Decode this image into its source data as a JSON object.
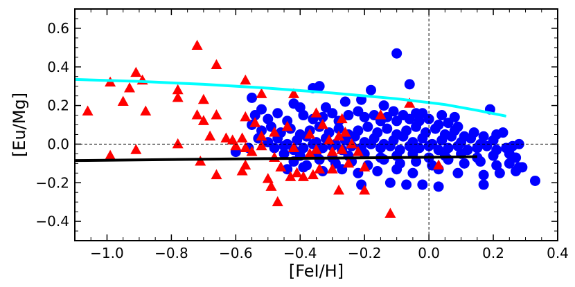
{
  "chart_data": {
    "type": "scatter",
    "xlabel": "[FeI/H]",
    "ylabel": "[Eu/Mg]",
    "xlim": [
      -1.1,
      0.4
    ],
    "ylim": [
      -0.5,
      0.7
    ],
    "xticks": [
      "−1.0",
      "−0.8",
      "−0.6",
      "−0.4",
      "−0.2",
      "0.0",
      "0.2",
      "0.4"
    ],
    "xtick_values": [
      -1.0,
      -0.8,
      -0.6,
      -0.4,
      -0.2,
      0.0,
      0.2,
      0.4
    ],
    "yticks": [
      "−0.4",
      "−0.2",
      "0.0",
      "0.2",
      "0.4",
      "0.6"
    ],
    "ytick_values": [
      -0.4,
      -0.2,
      0.0,
      0.2,
      0.4,
      0.6
    ],
    "reference_lines": {
      "x": 0.0,
      "y": 0.0,
      "style": "dashed"
    },
    "colors": {
      "triangles": "#ff0000",
      "circles": "#0000ff",
      "cyan_line": "#00ffff",
      "black_line": "#000000"
    },
    "series": [
      {
        "marker": "circle",
        "color": "#0000ff",
        "points": [
          [
            -0.1,
            0.47
          ],
          [
            -0.06,
            0.31
          ],
          [
            -0.34,
            0.3
          ],
          [
            -0.36,
            0.29
          ],
          [
            -0.18,
            0.28
          ],
          [
            -0.42,
            0.21
          ],
          [
            -0.4,
            0.19
          ],
          [
            -0.32,
            0.19
          ],
          [
            -0.26,
            0.22
          ],
          [
            -0.21,
            0.23
          ],
          [
            -0.14,
            0.2
          ],
          [
            -0.11,
            0.17
          ],
          [
            -0.04,
            0.16
          ],
          [
            -0.02,
            0.16
          ],
          [
            0.04,
            0.15
          ],
          [
            0.08,
            0.14
          ],
          [
            0.19,
            0.18
          ],
          [
            -0.55,
            0.24
          ],
          [
            -0.52,
            0.18
          ],
          [
            -0.54,
            0.15
          ],
          [
            -0.5,
            0.13
          ],
          [
            -0.47,
            0.16
          ],
          [
            -0.44,
            0.12
          ],
          [
            -0.39,
            0.15
          ],
          [
            -0.36,
            0.13
          ],
          [
            -0.33,
            0.14
          ],
          [
            -0.3,
            0.16
          ],
          [
            -0.28,
            0.12
          ],
          [
            -0.25,
            0.15
          ],
          [
            -0.22,
            0.17
          ],
          [
            -0.2,
            0.14
          ],
          [
            -0.17,
            0.15
          ],
          [
            -0.15,
            0.12
          ],
          [
            -0.13,
            0.14
          ],
          [
            -0.1,
            0.12
          ],
          [
            -0.08,
            0.15
          ],
          [
            -0.06,
            0.13
          ],
          [
            -0.03,
            0.12
          ],
          [
            0.0,
            0.13
          ],
          [
            0.03,
            0.1
          ],
          [
            0.06,
            0.11
          ],
          [
            0.09,
            0.09
          ],
          [
            -0.55,
            0.1
          ],
          [
            -0.52,
            0.07
          ],
          [
            -0.49,
            0.09
          ],
          [
            -0.46,
            0.06
          ],
          [
            -0.43,
            0.08
          ],
          [
            -0.4,
            0.05
          ],
          [
            -0.37,
            0.07
          ],
          [
            -0.34,
            0.09
          ],
          [
            -0.31,
            0.06
          ],
          [
            -0.28,
            0.08
          ],
          [
            -0.25,
            0.05
          ],
          [
            -0.22,
            0.07
          ],
          [
            -0.19,
            0.09
          ],
          [
            -0.16,
            0.06
          ],
          [
            -0.13,
            0.08
          ],
          [
            -0.1,
            0.05
          ],
          [
            -0.07,
            0.07
          ],
          [
            -0.04,
            0.09
          ],
          [
            -0.01,
            0.06
          ],
          [
            0.02,
            0.08
          ],
          [
            0.05,
            0.05
          ],
          [
            0.08,
            0.07
          ],
          [
            0.11,
            0.04
          ],
          [
            0.14,
            0.06
          ],
          [
            0.17,
            0.04
          ],
          [
            0.21,
            0.05
          ],
          [
            0.23,
            0.06
          ],
          [
            -0.53,
            0.03
          ],
          [
            -0.5,
            0.01
          ],
          [
            -0.47,
            0.03
          ],
          [
            -0.44,
            0.0
          ],
          [
            -0.41,
            0.02
          ],
          [
            -0.38,
            0.04
          ],
          [
            -0.35,
            0.01
          ],
          [
            -0.32,
            0.03
          ],
          [
            -0.29,
            0.0
          ],
          [
            -0.26,
            0.02
          ],
          [
            -0.23,
            0.04
          ],
          [
            -0.2,
            0.01
          ],
          [
            -0.17,
            0.03
          ],
          [
            -0.14,
            0.0
          ],
          [
            -0.11,
            0.02
          ],
          [
            -0.08,
            0.04
          ],
          [
            -0.05,
            0.01
          ],
          [
            -0.02,
            0.03
          ],
          [
            0.01,
            0.0
          ],
          [
            0.04,
            0.02
          ],
          [
            0.07,
            0.04
          ],
          [
            0.1,
            0.01
          ],
          [
            0.13,
            0.03
          ],
          [
            0.16,
            0.0
          ],
          [
            0.2,
            0.02
          ],
          [
            -0.48,
            -0.02
          ],
          [
            -0.45,
            -0.01
          ],
          [
            -0.42,
            -0.03
          ],
          [
            -0.39,
            -0.02
          ],
          [
            -0.36,
            0.0
          ],
          [
            -0.33,
            -0.02
          ],
          [
            -0.3,
            -0.01
          ],
          [
            -0.27,
            -0.03
          ],
          [
            -0.24,
            -0.01
          ],
          [
            -0.21,
            -0.02
          ],
          [
            -0.18,
            0.0
          ],
          [
            -0.15,
            -0.02
          ],
          [
            -0.12,
            -0.01
          ],
          [
            -0.09,
            -0.03
          ],
          [
            -0.06,
            -0.01
          ],
          [
            -0.03,
            -0.02
          ],
          [
            0.0,
            -0.01
          ],
          [
            0.03,
            -0.03
          ],
          [
            0.06,
            -0.02
          ],
          [
            0.09,
            -0.01
          ],
          [
            0.12,
            -0.03
          ],
          [
            0.15,
            -0.02
          ],
          [
            0.18,
            -0.01
          ],
          [
            0.21,
            -0.03
          ],
          [
            0.24,
            -0.02
          ],
          [
            0.26,
            -0.01
          ],
          [
            0.28,
            0.0
          ],
          [
            -0.45,
            -0.05
          ],
          [
            -0.4,
            -0.06
          ],
          [
            -0.35,
            -0.05
          ],
          [
            -0.3,
            -0.07
          ],
          [
            -0.25,
            -0.06
          ],
          [
            -0.2,
            -0.05
          ],
          [
            -0.15,
            -0.07
          ],
          [
            -0.1,
            -0.06
          ],
          [
            -0.05,
            -0.05
          ],
          [
            0.0,
            -0.07
          ],
          [
            0.05,
            -0.06
          ],
          [
            0.1,
            -0.05
          ],
          [
            0.15,
            -0.07
          ],
          [
            0.2,
            -0.06
          ],
          [
            0.25,
            -0.05
          ],
          [
            0.27,
            -0.07
          ],
          [
            -0.6,
            -0.04
          ],
          [
            -0.56,
            -0.02
          ],
          [
            -0.42,
            -0.09
          ],
          [
            -0.38,
            -0.11
          ],
          [
            -0.34,
            -0.08
          ],
          [
            -0.29,
            -0.1
          ],
          [
            -0.24,
            -0.09
          ],
          [
            -0.19,
            -0.11
          ],
          [
            -0.14,
            -0.08
          ],
          [
            -0.09,
            -0.1
          ],
          [
            -0.04,
            -0.09
          ],
          [
            0.01,
            -0.11
          ],
          [
            0.06,
            -0.08
          ],
          [
            0.11,
            -0.1
          ],
          [
            0.16,
            -0.09
          ],
          [
            0.21,
            -0.11
          ],
          [
            0.25,
            -0.1
          ],
          [
            0.28,
            -0.12
          ],
          [
            -0.44,
            -0.13
          ],
          [
            -0.39,
            -0.12
          ],
          [
            -0.33,
            -0.14
          ],
          [
            -0.27,
            -0.13
          ],
          [
            -0.22,
            -0.15
          ],
          [
            -0.16,
            -0.14
          ],
          [
            -0.1,
            -0.13
          ],
          [
            -0.05,
            -0.15
          ],
          [
            0.03,
            -0.13
          ],
          [
            0.09,
            -0.15
          ],
          [
            0.17,
            -0.16
          ],
          [
            0.22,
            -0.15
          ],
          [
            0.27,
            -0.14
          ],
          [
            0.29,
            -0.12
          ],
          [
            -0.21,
            -0.21
          ],
          [
            -0.12,
            -0.2
          ],
          [
            -0.07,
            -0.21
          ],
          [
            -0.02,
            -0.21
          ],
          [
            0.03,
            -0.22
          ],
          [
            0.17,
            -0.21
          ],
          [
            0.33,
            -0.19
          ]
        ]
      },
      {
        "marker": "triangle",
        "color": "#ff0000",
        "points": [
          [
            -0.72,
            0.51
          ],
          [
            -0.66,
            0.41
          ],
          [
            -0.91,
            0.37
          ],
          [
            -0.99,
            0.32
          ],
          [
            -0.89,
            0.33
          ],
          [
            -0.93,
            0.29
          ],
          [
            -0.57,
            0.33
          ],
          [
            -0.78,
            0.28
          ],
          [
            -0.78,
            0.24
          ],
          [
            -0.42,
            0.26
          ],
          [
            -0.52,
            0.26
          ],
          [
            -0.7,
            0.23
          ],
          [
            -0.95,
            0.22
          ],
          [
            -0.06,
            0.21
          ],
          [
            -1.06,
            0.17
          ],
          [
            -0.88,
            0.17
          ],
          [
            -0.72,
            0.15
          ],
          [
            -0.66,
            0.15
          ],
          [
            -0.57,
            0.14
          ],
          [
            -0.35,
            0.16
          ],
          [
            -0.27,
            0.13
          ],
          [
            -0.15,
            0.15
          ],
          [
            -0.7,
            0.12
          ],
          [
            -0.54,
            0.11
          ],
          [
            -0.44,
            0.09
          ],
          [
            -0.33,
            0.1
          ],
          [
            -0.37,
            0.05
          ],
          [
            -0.48,
            0.06
          ],
          [
            -0.52,
            0.04
          ],
          [
            -0.58,
            0.03
          ],
          [
            -0.61,
            0.02
          ],
          [
            -0.63,
            0.03
          ],
          [
            -0.68,
            0.04
          ],
          [
            -0.26,
            0.06
          ],
          [
            -0.28,
            0.04
          ],
          [
            -0.31,
            0.02
          ],
          [
            -0.24,
            0.0
          ],
          [
            -0.78,
            0.0
          ],
          [
            -0.6,
            -0.01
          ],
          [
            -0.57,
            -0.02
          ],
          [
            -0.52,
            -0.01
          ],
          [
            -0.42,
            -0.02
          ],
          [
            -0.35,
            -0.03
          ],
          [
            -0.3,
            -0.04
          ],
          [
            -0.27,
            -0.03
          ],
          [
            -0.22,
            -0.04
          ],
          [
            -0.37,
            -0.05
          ],
          [
            -0.91,
            -0.03
          ],
          [
            -0.99,
            -0.06
          ],
          [
            -0.55,
            -0.04
          ],
          [
            -0.48,
            -0.07
          ],
          [
            -0.46,
            -0.12
          ],
          [
            -0.57,
            -0.11
          ],
          [
            -0.71,
            -0.09
          ],
          [
            -0.41,
            -0.15
          ],
          [
            -0.43,
            -0.17
          ],
          [
            -0.36,
            -0.16
          ],
          [
            -0.3,
            -0.13
          ],
          [
            -0.34,
            -0.13
          ],
          [
            -0.25,
            -0.1
          ],
          [
            -0.2,
            -0.12
          ],
          [
            -0.66,
            -0.16
          ],
          [
            -0.58,
            -0.14
          ],
          [
            -0.5,
            -0.18
          ],
          [
            -0.39,
            -0.17
          ],
          [
            -0.28,
            -0.24
          ],
          [
            -0.2,
            -0.24
          ],
          [
            -0.49,
            -0.22
          ],
          [
            -0.47,
            -0.3
          ],
          [
            -0.12,
            -0.36
          ],
          [
            0.03,
            -0.11
          ]
        ]
      },
      {
        "marker": "line",
        "color": "#00ffff",
        "points": [
          [
            -1.1,
            0.335
          ],
          [
            -0.9,
            0.325
          ],
          [
            -0.7,
            0.31
          ],
          [
            -0.5,
            0.29
          ],
          [
            -0.3,
            0.265
          ],
          [
            -0.1,
            0.235
          ],
          [
            0.05,
            0.205
          ],
          [
            0.15,
            0.175
          ],
          [
            0.24,
            0.145
          ]
        ]
      },
      {
        "marker": "line",
        "color": "#000000",
        "points": [
          [
            -1.1,
            -0.085
          ],
          [
            -0.5,
            -0.075
          ],
          [
            0.0,
            -0.068
          ],
          [
            0.15,
            -0.065
          ]
        ]
      }
    ]
  }
}
